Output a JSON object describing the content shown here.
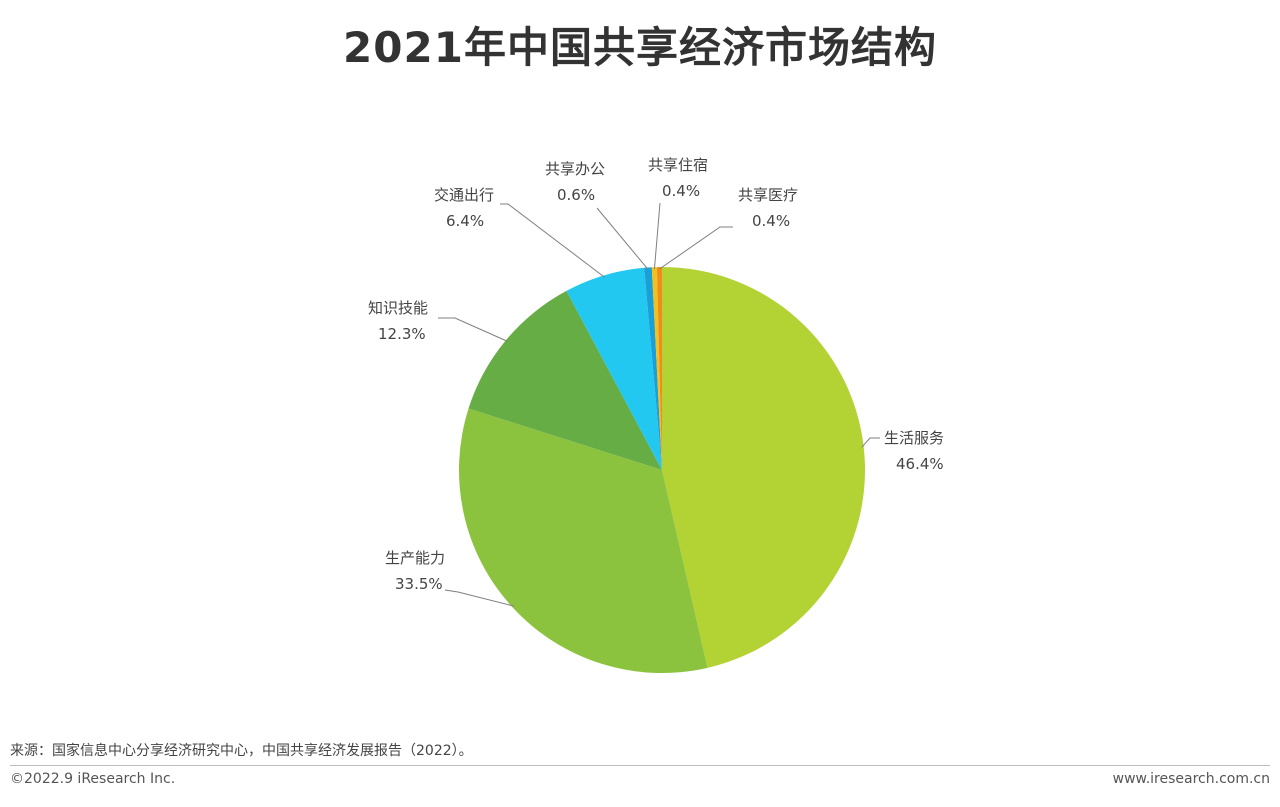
{
  "title": "2021年中国共享经济市场结构",
  "chart_data": {
    "type": "pie",
    "title": "2021年中国共享经济市场结构",
    "slices": [
      {
        "label": "生活服务",
        "value": 46.4,
        "value_label": "46.4%",
        "color": "#b3d234"
      },
      {
        "label": "生产能力",
        "value": 33.5,
        "value_label": "33.5%",
        "color": "#8bc33f"
      },
      {
        "label": "知识技能",
        "value": 12.3,
        "value_label": "12.3%",
        "color": "#66ad45"
      },
      {
        "label": "交通出行",
        "value": 6.4,
        "value_label": "6.4%",
        "color": "#22c8f0"
      },
      {
        "label": "共享办公",
        "value": 0.6,
        "value_label": "0.6%",
        "color": "#1a9fd8"
      },
      {
        "label": "共享住宿",
        "value": 0.4,
        "value_label": "0.4%",
        "color": "#f1c21b"
      },
      {
        "label": "共享医疗",
        "value": 0.4,
        "value_label": "0.4%",
        "color": "#f08c1c"
      }
    ],
    "start_angle": "12 o'clock",
    "direction": "clockwise",
    "legend": "none",
    "label_style": "leader lines"
  },
  "footer": {
    "source": "来源：国家信息中心分享经济研究中心，中国共享经济发展报告（2022）。",
    "copyright": "©2022.9 iResearch Inc.",
    "website": "www.iresearch.com.cn"
  }
}
